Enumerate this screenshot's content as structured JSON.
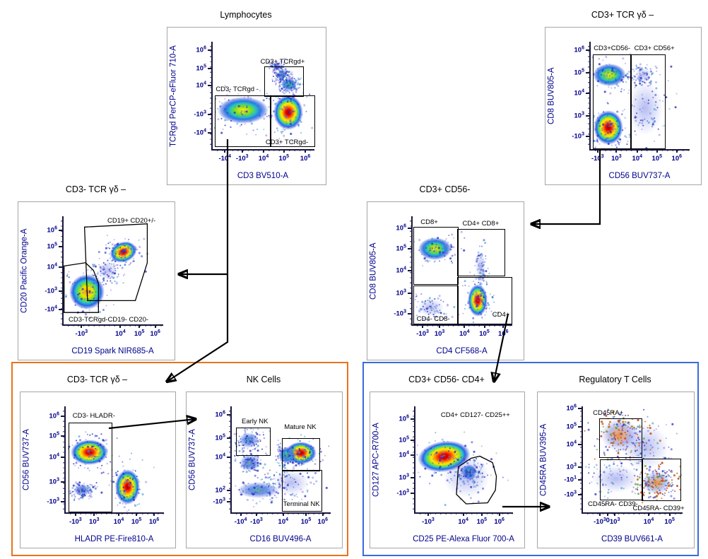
{
  "colors": {
    "axis_text": "#00008C",
    "title_text": "#000000",
    "panel_border": "#A6A6A6",
    "spine": "#16163E",
    "nk_group_border": "#E8731A",
    "treg_group_border": "#3A6BDC",
    "arrow": "#000000"
  },
  "arrows": [
    {
      "from": "Lymphocytes / CD3- TCRgd -",
      "to": "CD3- TCR γδ – (CD19 vs CD20)"
    },
    {
      "from": "Lymphocytes / CD3- TCRgd -",
      "to": "CD3- TCR γδ – (HLADR vs CD56)"
    },
    {
      "from": "CD3+ TCR γδ –",
      "to": "CD3+ CD56-"
    },
    {
      "from": "CD3+ CD56- / CD4+",
      "to": "CD3+ CD56- CD4+"
    },
    {
      "from": "CD3- HLADR-",
      "to": "NK Cells"
    },
    {
      "from": "CD4+ CD127- CD25++",
      "to": "Regulatory T Cells"
    }
  ],
  "chart_data": [
    {
      "type": "scatter",
      "title": "Lymphocytes",
      "xlabel": "CD3 BV510-A",
      "ylabel": "TCRgd PerCP-eFluor 710-A",
      "x_ticks": [
        {
          "label": "-10^4",
          "pos": 0.12
        },
        {
          "label": "-10^3",
          "pos": 0.29
        },
        {
          "label": "10^4",
          "pos": 0.5
        },
        {
          "label": "10^5",
          "pos": 0.7
        },
        {
          "label": "10^6",
          "pos": 0.91
        }
      ],
      "y_ticks": [
        {
          "label": "10^6",
          "pos": 0.08
        },
        {
          "label": "10^5",
          "pos": 0.25
        },
        {
          "label": "10^4",
          "pos": 0.41
        },
        {
          "label": "-10^3",
          "pos": 0.68
        },
        {
          "label": "-10^4",
          "pos": 0.85
        }
      ],
      "gates": [
        {
          "label": "CD3+ TCRgd+",
          "shape": "rect",
          "x1": 0.51,
          "y1": 0.23,
          "x2": 0.88,
          "y2": 0.5,
          "label_x": 0.47,
          "label_y": 0.155
        },
        {
          "label": "CD3- TCRgd -",
          "shape": "rect",
          "x1": 0.02,
          "y1": 0.5,
          "x2": 0.56,
          "y2": 0.97,
          "label_x": 0.03,
          "label_y": 0.415
        },
        {
          "label": "CD3+ TCRgd-",
          "shape": "rect",
          "x1": 0.56,
          "y1": 0.5,
          "x2": 0.99,
          "y2": 0.97,
          "label_x": 0.52,
          "label_y": 0.905
        }
      ],
      "populations": [
        {
          "cx": 0.3,
          "cy": 0.64,
          "rx": 0.25,
          "ry": 0.125,
          "kind": "warm",
          "rot": 0
        },
        {
          "cx": 0.745,
          "cy": 0.66,
          "rx": 0.145,
          "ry": 0.165,
          "kind": "hot",
          "rot": 0
        },
        {
          "cx": 0.75,
          "cy": 0.4,
          "rx": 0.075,
          "ry": 0.055,
          "kind": "green",
          "rot": 0
        },
        {
          "cx": 0.68,
          "cy": 0.31,
          "rx": 0.055,
          "ry": 0.045,
          "kind": "cool",
          "rot": -35
        },
        {
          "cx": 0.63,
          "cy": 0.23,
          "rx": 0.05,
          "ry": 0.04,
          "kind": "sparse",
          "rot": -35
        }
      ]
    },
    {
      "type": "scatter",
      "title": "CD3+ TCR γδ –",
      "xlabel": "CD56 BUV737-A",
      "ylabel": "CD8 BUV805-A",
      "x_ticks": [
        {
          "label": "-10^3",
          "pos": 0.07
        },
        {
          "label": "10^3",
          "pos": 0.26
        },
        {
          "label": "10^4",
          "pos": 0.47
        },
        {
          "label": "10^5",
          "pos": 0.67
        },
        {
          "label": "10^6",
          "pos": 0.87
        }
      ],
      "y_ticks": [
        {
          "label": "10^6",
          "pos": 0.08
        },
        {
          "label": "10^5",
          "pos": 0.29
        },
        {
          "label": "10^4",
          "pos": 0.48
        },
        {
          "label": "10^3",
          "pos": 0.69
        },
        {
          "label": "-10^3",
          "pos": 0.88
        }
      ],
      "gates": [
        {
          "label": "CD3+CD56-",
          "shape": "rect",
          "x1": 0.02,
          "y1": 0.12,
          "x2": 0.4,
          "y2": 0.99,
          "label_x": 0.03,
          "label_y": 0.035
        },
        {
          "label": "CD3+ CD56+",
          "shape": "rect",
          "x1": 0.4,
          "y1": 0.12,
          "x2": 0.74,
          "y2": 0.99,
          "label_x": 0.44,
          "label_y": 0.035
        }
      ],
      "populations": [
        {
          "cx": 0.19,
          "cy": 0.31,
          "rx": 0.17,
          "ry": 0.105,
          "kind": "warm",
          "rot": 0
        },
        {
          "cx": 0.18,
          "cy": 0.8,
          "rx": 0.15,
          "ry": 0.16,
          "kind": "hot",
          "rot": 0
        },
        {
          "cx": 0.53,
          "cy": 0.31,
          "rx": 0.09,
          "ry": 0.07,
          "kind": "sparse",
          "rot": 0
        },
        {
          "cx": 0.55,
          "cy": 0.62,
          "rx": 0.18,
          "ry": 0.25,
          "kind": "sparse",
          "rot": 0
        }
      ]
    },
    {
      "type": "scatter",
      "title": "CD3- TCR γδ –",
      "xlabel": "CD19 Spark NIR685-A",
      "ylabel": "CD20 Pacific Orange-A",
      "x_ticks": [
        {
          "label": "-10^3",
          "pos": 0.18
        },
        {
          "label": "10^4",
          "pos": 0.57
        },
        {
          "label": "10^5",
          "pos": 0.76
        },
        {
          "label": "10^6",
          "pos": 0.92
        }
      ],
      "y_ticks": [
        {
          "label": "10^6",
          "pos": 0.13
        },
        {
          "label": "10^5",
          "pos": 0.28
        },
        {
          "label": "10^4",
          "pos": 0.47
        },
        {
          "label": "-10^3",
          "pos": 0.69
        },
        {
          "label": "-10^4",
          "pos": 0.86
        }
      ],
      "gates": [
        {
          "label": "CD19+ CD20+/-",
          "shape": "poly",
          "points": [
            [
              0.21,
              0.1
            ],
            [
              0.84,
              0.07
            ],
            [
              0.84,
              0.43
            ],
            [
              0.72,
              0.78
            ],
            [
              0.24,
              0.78
            ],
            [
              0.21,
              0.1
            ]
          ],
          "label_x": 0.44,
          "label_y": 0.015
        },
        {
          "label": "CD3-TCRgd-CD19- CD20-",
          "shape": "poly",
          "points": [
            [
              0.005,
              0.46
            ],
            [
              0.22,
              0.43
            ],
            [
              0.3,
              0.5
            ],
            [
              0.35,
              0.62
            ],
            [
              0.35,
              0.89
            ],
            [
              0.005,
              0.89
            ]
          ],
          "label_x": 0.05,
          "label_y": 0.925
        }
      ],
      "populations": [
        {
          "cx": 0.6,
          "cy": 0.33,
          "rx": 0.14,
          "ry": 0.095,
          "kind": "hot",
          "rot": -18
        },
        {
          "cx": 0.235,
          "cy": 0.7,
          "rx": 0.175,
          "ry": 0.165,
          "kind": "orangewarm",
          "rot": 0
        },
        {
          "cx": 0.44,
          "cy": 0.5,
          "rx": 0.1,
          "ry": 0.09,
          "kind": "sparse",
          "rot": -30
        }
      ]
    },
    {
      "type": "scatter",
      "title": "CD3+ CD56-",
      "xlabel": "CD4 CF568-A",
      "ylabel": "CD8 BUV805-A",
      "x_ticks": [
        {
          "label": "-10^3",
          "pos": 0.1
        },
        {
          "label": "10^3",
          "pos": 0.27
        },
        {
          "label": "10^4",
          "pos": 0.52
        },
        {
          "label": "10^5",
          "pos": 0.72
        },
        {
          "label": "10^6",
          "pos": 0.91
        }
      ],
      "y_ticks": [
        {
          "label": "10^6",
          "pos": 0.11
        },
        {
          "label": "10^5",
          "pos": 0.3
        },
        {
          "label": "10^4",
          "pos": 0.5
        },
        {
          "label": "10^3",
          "pos": 0.71
        },
        {
          "label": "-10^3",
          "pos": 0.9
        }
      ],
      "gates": [
        {
          "label": "CD8+",
          "shape": "rect",
          "x1": 0.01,
          "y1": 0.1,
          "x2": 0.45,
          "y2": 0.62,
          "label_x": 0.08,
          "label_y": 0.025
        },
        {
          "label": "CD4+ CD8+",
          "shape": "rect",
          "x1": 0.45,
          "y1": 0.12,
          "x2": 0.915,
          "y2": 0.54,
          "label_x": 0.5,
          "label_y": 0.04
        },
        {
          "label": "CD4- CD8-",
          "shape": "rect",
          "x1": 0.01,
          "y1": 0.64,
          "x2": 0.45,
          "y2": 0.99,
          "label_x": 0.04,
          "label_y": 0.92
        },
        {
          "label": "CD4+",
          "shape": "rect",
          "x1": 0.45,
          "y1": 0.56,
          "x2": 0.985,
          "y2": 0.99,
          "label_x": 0.8,
          "label_y": 0.885
        }
      ],
      "populations": [
        {
          "cx": 0.225,
          "cy": 0.3,
          "rx": 0.165,
          "ry": 0.105,
          "kind": "warm",
          "rot": 0
        },
        {
          "cx": 0.655,
          "cy": 0.78,
          "rx": 0.1,
          "ry": 0.15,
          "kind": "hot",
          "rot": 0
        },
        {
          "cx": 0.68,
          "cy": 0.47,
          "rx": 0.05,
          "ry": 0.14,
          "kind": "sparse",
          "rot": 0
        },
        {
          "cx": 0.18,
          "cy": 0.84,
          "rx": 0.13,
          "ry": 0.085,
          "kind": "sparse",
          "rot": 0
        }
      ]
    },
    {
      "type": "scatter",
      "title": "CD3- TCR γδ –",
      "xlabel": "HLADR PE-Fire810-A",
      "ylabel": "CD56 BUV737-A",
      "x_ticks": [
        {
          "label": "-10^3",
          "pos": 0.1
        },
        {
          "label": "10^3",
          "pos": 0.29
        },
        {
          "label": "10^4",
          "pos": 0.54
        },
        {
          "label": "10^5",
          "pos": 0.72
        },
        {
          "label": "10^6",
          "pos": 0.9
        }
      ],
      "y_ticks": [
        {
          "label": "10^6",
          "pos": 0.09
        },
        {
          "label": "10^5",
          "pos": 0.28
        },
        {
          "label": "10^4",
          "pos": 0.48
        },
        {
          "label": "10^3",
          "pos": 0.71
        },
        {
          "label": "-10^3",
          "pos": 0.9
        }
      ],
      "gates": [
        {
          "label": "CD3- HLADR-",
          "shape": "rect",
          "x1": 0.03,
          "y1": 0.155,
          "x2": 0.46,
          "y2": 0.985,
          "label_x": 0.07,
          "label_y": 0.06
        }
      ],
      "populations": [
        {
          "cx": 0.24,
          "cy": 0.43,
          "rx": 0.19,
          "ry": 0.12,
          "kind": "hot",
          "rot": 0
        },
        {
          "cx": 0.63,
          "cy": 0.76,
          "rx": 0.125,
          "ry": 0.165,
          "kind": "hot",
          "rot": 0
        },
        {
          "cx": 0.17,
          "cy": 0.79,
          "rx": 0.09,
          "ry": 0.055,
          "kind": "cool",
          "rot": 0
        }
      ]
    },
    {
      "type": "scatter",
      "title": "NK Cells",
      "xlabel": "CD16 BUV496-A",
      "ylabel": "CD56 BUV737-A",
      "x_ticks": [
        {
          "label": "-10^4",
          "pos": 0.09
        },
        {
          "label": "-10^3",
          "pos": 0.25
        },
        {
          "label": "10^4",
          "pos": 0.52
        },
        {
          "label": "10^5",
          "pos": 0.75
        },
        {
          "label": "10^6",
          "pos": 0.92
        }
      ],
      "y_ticks": [
        {
          "label": "10^6",
          "pos": 0.08
        },
        {
          "label": "10^5",
          "pos": 0.3
        },
        {
          "label": "10^4",
          "pos": 0.48
        },
        {
          "label": "10^2",
          "pos": 0.79
        },
        {
          "label": "-10^3",
          "pos": 0.9
        }
      ],
      "gates": [
        {
          "label": "Early NK",
          "shape": "rect",
          "x1": 0.04,
          "y1": 0.2,
          "x2": 0.38,
          "y2": 0.45,
          "label_x": 0.1,
          "label_y": 0.115
        },
        {
          "label": "Mature NK",
          "shape": "rect",
          "x1": 0.51,
          "y1": 0.3,
          "x2": 0.88,
          "y2": 0.6,
          "label_x": 0.53,
          "label_y": 0.165
        },
        {
          "label": "Terminal NK",
          "shape": "rect",
          "x1": 0.51,
          "y1": 0.6,
          "x2": 0.9,
          "y2": 0.98,
          "label_x": 0.52,
          "label_y": 0.895
        }
      ],
      "populations": [
        {
          "cx": 0.17,
          "cy": 0.32,
          "rx": 0.1,
          "ry": 0.075,
          "kind": "cool",
          "rot": 0
        },
        {
          "cx": 0.18,
          "cy": 0.53,
          "rx": 0.105,
          "ry": 0.08,
          "kind": "cool",
          "rot": 0
        },
        {
          "cx": 0.7,
          "cy": 0.44,
          "rx": 0.155,
          "ry": 0.105,
          "kind": "hot",
          "rot": 0
        },
        {
          "cx": 0.56,
          "cy": 0.46,
          "rx": 0.09,
          "ry": 0.08,
          "kind": "green",
          "rot": 0
        },
        {
          "cx": 0.27,
          "cy": 0.79,
          "rx": 0.21,
          "ry": 0.075,
          "kind": "cool",
          "rot": 0
        },
        {
          "cx": 0.6,
          "cy": 0.72,
          "rx": 0.18,
          "ry": 0.12,
          "kind": "sparse",
          "rot": 0
        }
      ]
    },
    {
      "type": "scatter",
      "title": "CD3+ CD56- CD4+",
      "xlabel": "CD25 PE-Alexa Fluor 700-A",
      "ylabel": "CD127 APC-R700-A",
      "x_ticks": [
        {
          "label": "-10^3",
          "pos": 0.13
        },
        {
          "label": "10^4",
          "pos": 0.49
        },
        {
          "label": "10^5",
          "pos": 0.68
        },
        {
          "label": "10^6",
          "pos": 0.86
        }
      ],
      "y_ticks": [
        {
          "label": "10^6",
          "pos": 0.12
        },
        {
          "label": "10^5",
          "pos": 0.32
        },
        {
          "label": "10^4",
          "pos": 0.46
        },
        {
          "label": "10^3",
          "pos": 0.675
        },
        {
          "label": "-10^3",
          "pos": 0.82
        }
      ],
      "gates": [
        {
          "label": "CD4+ CD127- CD25++",
          "shape": "poly",
          "points": [
            [
              0.44,
              0.57
            ],
            [
              0.57,
              0.49
            ],
            [
              0.66,
              0.47
            ],
            [
              0.79,
              0.53
            ],
            [
              0.83,
              0.66
            ],
            [
              0.82,
              0.79
            ],
            [
              0.74,
              0.91
            ],
            [
              0.52,
              0.92
            ],
            [
              0.42,
              0.83
            ],
            [
              0.44,
              0.57
            ]
          ],
          "label_x": 0.26,
          "label_y": 0.055
        },
        {
          "label": "",
          "shape": "none",
          "label_x": 0,
          "label_y": 0
        }
      ],
      "populations": [
        {
          "cx": 0.295,
          "cy": 0.47,
          "rx": 0.27,
          "ry": 0.145,
          "kind": "hot",
          "rot": -8
        },
        {
          "cx": 0.55,
          "cy": 0.62,
          "rx": 0.075,
          "ry": 0.075,
          "kind": "green",
          "rot": 0
        },
        {
          "cx": 0.52,
          "cy": 0.66,
          "rx": 0.24,
          "ry": 0.2,
          "kind": "sparse",
          "rot": 0
        }
      ]
    },
    {
      "type": "scatter",
      "title": "Regulatory T Cells",
      "xlabel": "CD39 BUV661-A",
      "ylabel": "CD45RA BUV395-A",
      "x_ticks": [
        {
          "label": "-10^3",
          "pos": 0.17
        },
        {
          "label": "0",
          "pos": 0.25
        },
        {
          "label": "10^3",
          "pos": 0.32
        },
        {
          "label": "10^4",
          "pos": 0.66
        },
        {
          "label": "10^5",
          "pos": 0.87
        }
      ],
      "y_ticks": [
        {
          "label": "10^6",
          "pos": 0.02
        },
        {
          "label": "10^5",
          "pos": 0.19
        },
        {
          "label": "10^4",
          "pos": 0.36
        },
        {
          "label": "10^3",
          "pos": 0.57
        },
        {
          "label": "-10^1",
          "pos": 0.69
        },
        {
          "label": "-10^3",
          "pos": 0.83
        }
      ],
      "gates": [
        {
          "label": "CD45RA+",
          "shape": "rect",
          "x1": 0.16,
          "y1": 0.11,
          "x2": 0.58,
          "y2": 0.47,
          "label_x": 0.1,
          "label_y": 0.035
        },
        {
          "label": "CD45RA- CD39-",
          "shape": "rect",
          "x1": 0.17,
          "y1": 0.5,
          "x2": 0.59,
          "y2": 0.87,
          "label_x": 0.05,
          "label_y": 0.89
        },
        {
          "label": "CD45RA- CD39+",
          "shape": "rect",
          "x1": 0.59,
          "y1": 0.49,
          "x2": 0.97,
          "y2": 0.88,
          "label_x": 0.5,
          "label_y": 0.935
        }
      ],
      "populations": [
        {
          "cx": 0.37,
          "cy": 0.27,
          "rx": 0.19,
          "ry": 0.155,
          "kind": "speck",
          "rot": 0
        },
        {
          "cx": 0.74,
          "cy": 0.72,
          "rx": 0.15,
          "ry": 0.115,
          "kind": "speck",
          "rot": 0
        },
        {
          "cx": 0.33,
          "cy": 0.68,
          "rx": 0.24,
          "ry": 0.13,
          "kind": "sparse",
          "rot": 0
        },
        {
          "cx": 0.62,
          "cy": 0.38,
          "rx": 0.24,
          "ry": 0.22,
          "kind": "sparse",
          "rot": 0
        }
      ]
    }
  ]
}
